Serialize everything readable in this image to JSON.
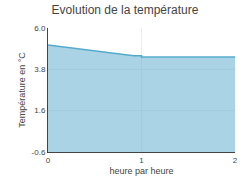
{
  "chart_data": {
    "type": "area",
    "title": "Evolution de la température",
    "xlabel": "heure par heure",
    "ylabel": "Température en °C",
    "x": [
      0,
      0.083,
      0.167,
      0.25,
      0.333,
      0.417,
      0.5,
      0.583,
      0.667,
      0.75,
      0.833,
      0.917,
      1.0,
      1.0,
      1.083,
      1.167,
      1.25,
      1.333,
      1.417,
      1.5,
      1.583,
      1.667,
      1.75,
      1.833,
      1.917,
      2.0
    ],
    "values": [
      5.1,
      5.05,
      5.0,
      4.95,
      4.9,
      4.85,
      4.78,
      4.72,
      4.67,
      4.62,
      4.57,
      4.52,
      4.52,
      4.45,
      4.45,
      4.45,
      4.45,
      4.45,
      4.45,
      4.45,
      4.45,
      4.45,
      4.45,
      4.45,
      4.45,
      4.45
    ],
    "color": "#55aacc",
    "xlim": [
      0,
      2
    ],
    "ylim": [
      -0.6,
      6.0
    ],
    "xticks": [
      0,
      1,
      2
    ],
    "yticks": [
      -0.6,
      1.6,
      3.8,
      {
        "value": 6.0,
        "label": "6.0"
      }
    ],
    "grid": true
  }
}
